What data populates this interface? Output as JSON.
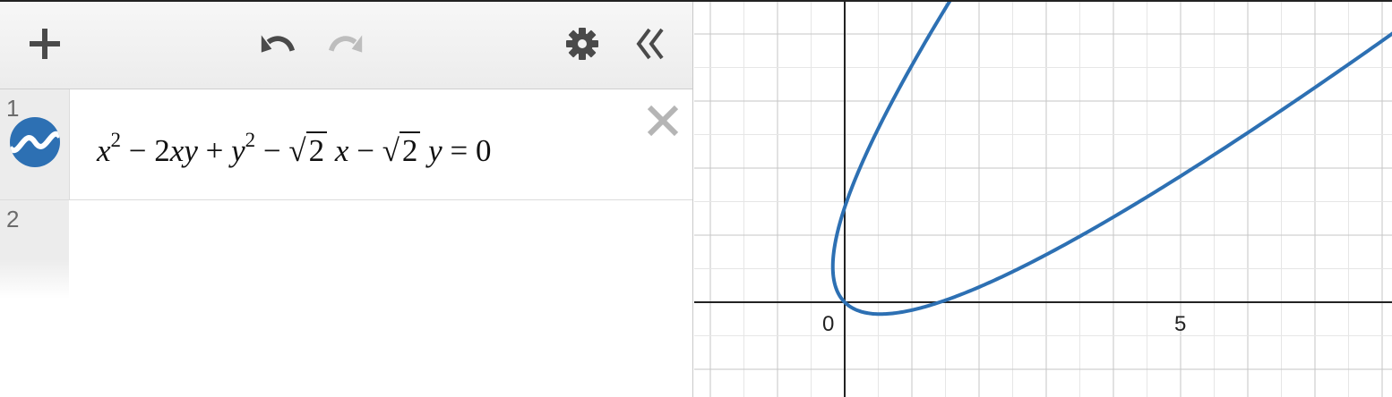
{
  "toolbar": {
    "add_icon": "plus-icon",
    "undo_icon": "undo-icon",
    "redo_icon": "redo-icon",
    "settings_icon": "gear-icon",
    "collapse_icon": "double-chevron-left-icon"
  },
  "expressions": [
    {
      "number": "1",
      "icon": "curve-icon",
      "color": "#2d70b3",
      "latex": "x^2 - 2xy + y^2 - \\sqrt{2}x - \\sqrt{2}y = 0"
    },
    {
      "number": "2"
    }
  ],
  "graph": {
    "x_range": [
      -2.2,
      8.2
    ],
    "y_range": [
      -1.4,
      4.5
    ],
    "grid": true,
    "tick_labels": {
      "origin": "0",
      "x5": "5"
    },
    "curve_color": "#2d70b3"
  }
}
